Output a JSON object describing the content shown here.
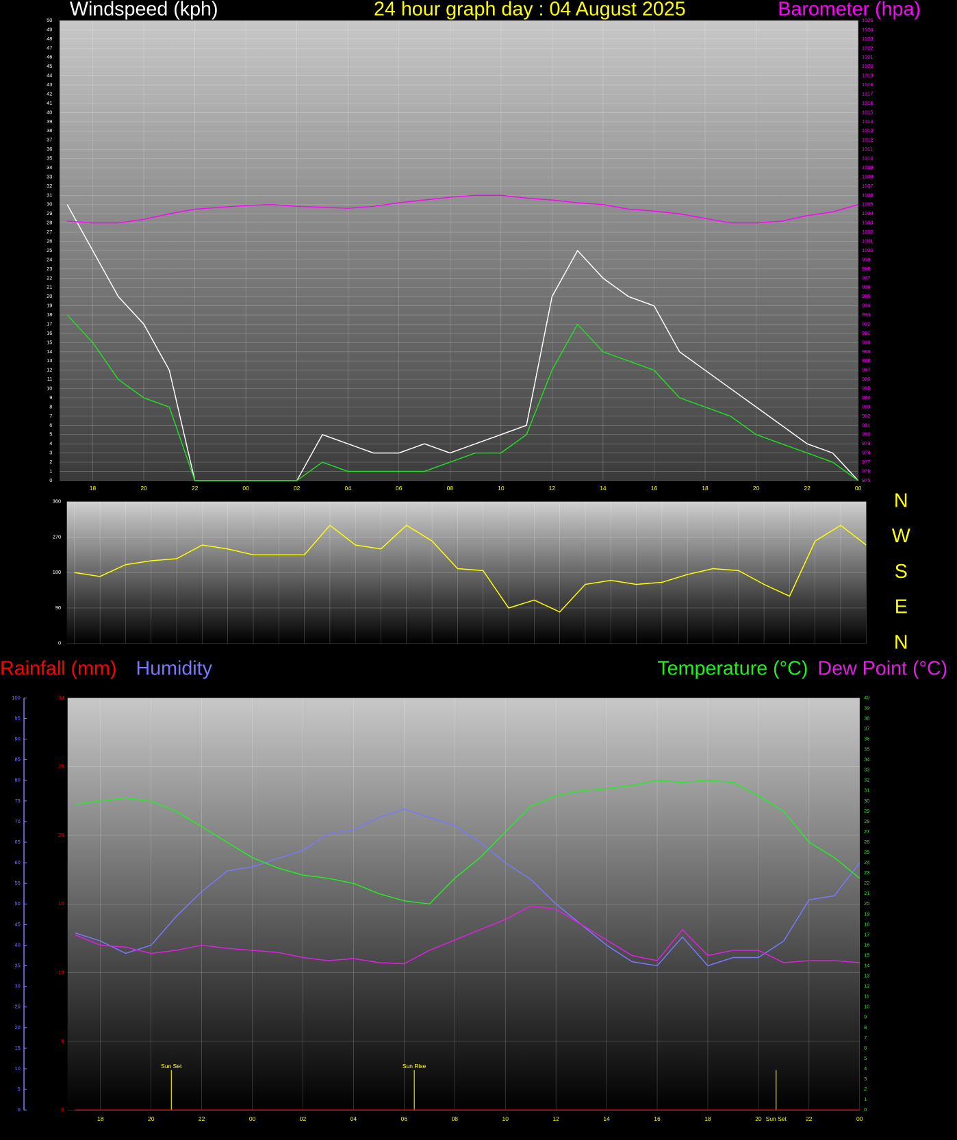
{
  "chart_data": [
    {
      "type": "line",
      "title": "24 hour graph day : 04 August 2025",
      "ylabel": "Windspeed (kph)",
      "y2label": "Barometer (hpa)",
      "x": [
        17,
        18,
        19,
        20,
        21,
        22,
        23,
        24,
        25,
        26,
        27,
        28,
        29,
        30,
        31,
        32,
        33,
        34,
        35,
        36,
        37,
        38,
        39,
        40,
        41,
        42,
        43,
        44,
        45,
        46,
        47,
        48
      ],
      "xlim": [
        16.7,
        48
      ],
      "xticks": [
        18,
        20,
        22,
        {
          "value": 24,
          "label": "00"
        },
        {
          "value": 26,
          "label": "02"
        },
        {
          "value": 28,
          "label": "04"
        },
        {
          "value": 30,
          "label": "06"
        },
        {
          "value": 32,
          "label": "08"
        },
        {
          "value": 34,
          "label": "10"
        },
        {
          "value": 36,
          "label": "12"
        },
        {
          "value": 38,
          "label": "14"
        },
        {
          "value": 40,
          "label": "16"
        },
        {
          "value": 42,
          "label": "18"
        },
        {
          "value": 44,
          "label": "20"
        },
        {
          "value": 46,
          "label": "22"
        },
        {
          "value": 48,
          "label": "00"
        }
      ],
      "ylim": [
        0,
        50
      ],
      "yticks": [
        0,
        1,
        2,
        3,
        4,
        5,
        6,
        7,
        8,
        9,
        10,
        11,
        12,
        13,
        14,
        15,
        16,
        17,
        18,
        19,
        20,
        21,
        22,
        23,
        24,
        25,
        26,
        27,
        28,
        29,
        30,
        31,
        32,
        33,
        34,
        35,
        36,
        37,
        38,
        39,
        40,
        41,
        42,
        43,
        44,
        45,
        46,
        47,
        48,
        49,
        50
      ],
      "y2lim": [
        975,
        1025
      ],
      "y2ticks": [
        975,
        976,
        977,
        978,
        979,
        980,
        981,
        982,
        983,
        984,
        985,
        986,
        987,
        988,
        989,
        990,
        991,
        992,
        993,
        994,
        995,
        996,
        997,
        998,
        999,
        1000,
        1001,
        1002,
        1003,
        1004,
        1005,
        1006,
        1007,
        1008,
        1009,
        1010,
        1011,
        1012,
        1013,
        1014,
        1015,
        1016,
        1017,
        1018,
        1019,
        1020,
        1021,
        1022,
        1023,
        1024,
        1025
      ],
      "grid": true,
      "series": [
        {
          "color": "#ffffff",
          "values": [
            30,
            25,
            20,
            17,
            12,
            0,
            0,
            0,
            0,
            0,
            5,
            4,
            3,
            3,
            4,
            3,
            4,
            5,
            6,
            20,
            25,
            22,
            20,
            19,
            14,
            12,
            10,
            8,
            6,
            4,
            3,
            0
          ]
        },
        {
          "color": "#22dd22",
          "values": [
            18,
            15,
            11,
            9,
            8,
            0,
            0,
            0,
            0,
            0,
            2,
            1,
            1,
            1,
            1,
            2,
            3,
            3,
            5,
            12,
            17,
            14,
            13,
            12,
            9,
            8,
            7,
            5,
            4,
            3,
            2,
            0
          ]
        },
        {
          "color": "#ff00ff",
          "axis": "y2",
          "values": [
            1003.2,
            1003,
            1003,
            1003.4,
            1004,
            1004.5,
            1004.7,
            1004.9,
            1005,
            1004.8,
            1004.7,
            1004.6,
            1004.8,
            1005.2,
            1005.5,
            1005.8,
            1006,
            1006,
            1005.7,
            1005.5,
            1005.2,
            1005,
            1004.5,
            1004.3,
            1004,
            1003.5,
            1003,
            1003,
            1003.2,
            1003.8,
            1004.2,
            1005
          ]
        }
      ]
    },
    {
      "type": "line",
      "x": [
        17,
        18,
        19,
        20,
        21,
        22,
        23,
        24,
        25,
        26,
        27,
        28,
        29,
        30,
        31,
        32,
        33,
        34,
        35,
        36,
        37,
        38,
        39,
        40,
        41,
        42,
        43,
        44,
        45,
        46,
        47,
        48
      ],
      "xlim": [
        16.7,
        48
      ],
      "ylim": [
        0,
        360
      ],
      "yticks": [
        0,
        90,
        180,
        270,
        360
      ],
      "y2lim": [
        0,
        360
      ],
      "y2ticks": [
        {
          "value": 360,
          "label": "N"
        },
        {
          "value": 270,
          "label": "W"
        },
        {
          "value": 180,
          "label": "S"
        },
        {
          "value": 90,
          "label": "E"
        },
        {
          "value": 0,
          "label": "N"
        }
      ],
      "grid": true,
      "series": [
        {
          "color": "#ffff00",
          "values": [
            180,
            170,
            200,
            210,
            215,
            250,
            240,
            225,
            225,
            225,
            300,
            250,
            240,
            300,
            260,
            190,
            185,
            90,
            110,
            80,
            150,
            160,
            150,
            155,
            175,
            190,
            185,
            150,
            120,
            260,
            300,
            250
          ]
        }
      ]
    },
    {
      "type": "line",
      "x": [
        17,
        18,
        19,
        20,
        21,
        22,
        23,
        24,
        25,
        26,
        27,
        28,
        29,
        30,
        31,
        32,
        33,
        34,
        35,
        36,
        37,
        38,
        39,
        40,
        41,
        42,
        43,
        44,
        45,
        46,
        47,
        48
      ],
      "xlim": [
        16.7,
        48
      ],
      "xticks": [
        18,
        20,
        22,
        {
          "value": 24,
          "label": "00"
        },
        {
          "value": 26,
          "label": "02"
        },
        {
          "value": 28,
          "label": "04"
        },
        {
          "value": 30,
          "label": "06"
        },
        {
          "value": 32,
          "label": "08"
        },
        {
          "value": 34,
          "label": "10"
        },
        {
          "value": 36,
          "label": "12"
        },
        {
          "value": 38,
          "label": "14"
        },
        {
          "value": 40,
          "label": "16"
        },
        {
          "value": 42,
          "label": "18"
        },
        {
          "value": 44,
          "label": "20"
        },
        {
          "value": 46,
          "label": "22"
        },
        {
          "value": 48,
          "label": "00"
        }
      ],
      "ylim": [
        0,
        30
      ],
      "yticks": [
        0,
        5,
        10,
        15,
        20,
        25,
        30
      ],
      "y2lim": [
        0,
        40
      ],
      "y2ticks": [
        0,
        1,
        2,
        3,
        4,
        5,
        6,
        7,
        8,
        9,
        10,
        11,
        12,
        13,
        14,
        15,
        16,
        17,
        18,
        19,
        20,
        21,
        22,
        23,
        24,
        25,
        26,
        27,
        28,
        29,
        30,
        31,
        32,
        33,
        34,
        35,
        36,
        37,
        38,
        39,
        40
      ],
      "y3lim": [
        0,
        100
      ],
      "y3ticks": [
        0,
        5,
        10,
        15,
        20,
        25,
        30,
        35,
        40,
        45,
        50,
        55,
        60,
        65,
        70,
        75,
        80,
        85,
        90,
        95,
        100
      ],
      "grid": true,
      "series": [
        {
          "name": "Rainfall (mm)",
          "color": "#ff0000",
          "values": [
            0,
            0,
            0,
            0,
            0,
            0,
            0,
            0,
            0,
            0,
            0,
            0,
            0,
            0,
            0,
            0,
            0,
            0,
            0,
            0,
            0,
            0,
            0,
            0,
            0,
            0,
            0,
            0,
            0,
            0,
            0,
            0
          ]
        },
        {
          "name": "Humidity",
          "color": "#7878ff",
          "axis": "y3",
          "values": [
            43,
            41,
            38,
            40,
            47,
            53,
            58,
            59,
            61,
            63,
            67,
            68,
            71,
            73,
            71,
            69,
            65,
            60,
            56,
            50,
            45,
            40,
            36,
            35,
            42,
            35,
            37,
            37,
            41,
            51,
            52,
            60
          ]
        },
        {
          "name": "Temperature (°C)",
          "color": "#22ee22",
          "axis": "y2",
          "values": [
            29.7,
            30,
            30.3,
            30,
            29,
            27.5,
            26,
            24.5,
            23.5,
            22.8,
            22.5,
            22,
            21,
            20.3,
            20,
            22.5,
            24.5,
            27,
            29.5,
            30.5,
            31,
            31.2,
            31.5,
            32,
            31.8,
            32,
            31.8,
            30.5,
            29,
            26,
            24.5,
            22.5
          ]
        },
        {
          "name": "Dew Point (°C)",
          "color": "#e020e0",
          "axis": "y2",
          "values": [
            17,
            16,
            15.8,
            15.2,
            15.5,
            16,
            15.7,
            15.5,
            15.3,
            14.8,
            14.5,
            14.7,
            14.3,
            14.2,
            15.5,
            16.5,
            17.5,
            18.5,
            19.8,
            19.5,
            18,
            16.5,
            15,
            14.5,
            17.5,
            15,
            15.5,
            15.5,
            14.3,
            14.5,
            14.5,
            14.3
          ]
        }
      ],
      "annotations": [
        {
          "x": 20.8,
          "label": "Sun Set",
          "position": "top"
        },
        {
          "x": 30.4,
          "label": "Sun Rise",
          "position": "top"
        },
        {
          "x": 44.7,
          "label": "Sun Set",
          "position": "bottom"
        }
      ]
    }
  ]
}
